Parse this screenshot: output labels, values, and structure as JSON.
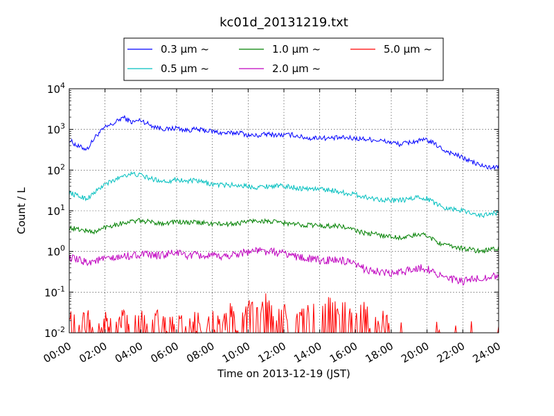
{
  "chart_data": {
    "type": "line",
    "title": "kc01d_20131219.txt",
    "xlabel": "Time on 2013-12-19 (JST)",
    "ylabel": "Count / L",
    "yscale": "log",
    "ylim": [
      0.01,
      10000
    ],
    "xlim": [
      "00:00",
      "24:00"
    ],
    "x_ticks": [
      "00:00",
      "02:00",
      "04:00",
      "06:00",
      "08:00",
      "10:00",
      "12:00",
      "14:00",
      "16:00",
      "18:00",
      "20:00",
      "22:00",
      "24:00"
    ],
    "y_ticks": [
      {
        "base": "10",
        "exp": "-2",
        "value": 0.01
      },
      {
        "base": "10",
        "exp": "-1",
        "value": 0.1
      },
      {
        "base": "10",
        "exp": "0",
        "value": 1
      },
      {
        "base": "10",
        "exp": "1",
        "value": 10
      },
      {
        "base": "10",
        "exp": "2",
        "value": 100
      },
      {
        "base": "10",
        "exp": "3",
        "value": 1000
      },
      {
        "base": "10",
        "exp": "4",
        "value": 10000
      }
    ],
    "grid": true,
    "legend_position": "top",
    "x_hours": [
      0,
      0.5,
      1,
      1.5,
      2,
      2.5,
      3,
      3.5,
      4,
      4.5,
      5,
      5.5,
      6,
      6.5,
      7,
      7.5,
      8,
      8.5,
      9,
      9.5,
      10,
      10.5,
      11,
      11.5,
      12,
      12.5,
      13,
      13.5,
      14,
      14.5,
      15,
      15.5,
      16,
      16.5,
      17,
      17.5,
      18,
      18.5,
      19,
      19.5,
      20,
      20.5,
      21,
      21.5,
      22,
      22.5,
      23,
      23.5,
      24
    ],
    "series": [
      {
        "name": "0.3 μm ~",
        "color": "#0000ff",
        "values": [
          550,
          380,
          330,
          700,
          1100,
          1400,
          2000,
          1500,
          1700,
          1300,
          1100,
          1000,
          1100,
          950,
          1000,
          950,
          900,
          820,
          800,
          850,
          720,
          700,
          760,
          740,
          720,
          740,
          650,
          600,
          640,
          600,
          620,
          620,
          600,
          580,
          560,
          520,
          480,
          430,
          480,
          520,
          550,
          420,
          300,
          250,
          200,
          160,
          130,
          115,
          120
        ]
      },
      {
        "name": "0.5 μm ~",
        "color": "#00bfbf",
        "values": [
          28,
          23,
          20,
          30,
          45,
          55,
          75,
          80,
          75,
          62,
          56,
          53,
          60,
          53,
          55,
          50,
          45,
          43,
          43,
          42,
          40,
          38,
          40,
          41,
          40,
          38,
          35,
          35,
          34,
          33,
          30,
          27,
          25,
          22,
          20,
          19,
          18,
          18,
          19,
          22,
          20,
          15,
          12,
          11,
          10,
          9,
          7.5,
          8.5,
          9
        ]
      },
      {
        "name": "1.0 μm ~",
        "color": "#008000",
        "values": [
          3.8,
          3.5,
          3.2,
          3.0,
          4.0,
          4.5,
          5.0,
          5.5,
          5.7,
          5.3,
          5.0,
          5.0,
          5.5,
          5.0,
          5.2,
          5.0,
          4.8,
          4.7,
          4.7,
          5.0,
          5.5,
          5.7,
          5.5,
          5.3,
          5.0,
          4.7,
          4.5,
          4.5,
          4.3,
          4.2,
          4.3,
          3.8,
          3.3,
          2.8,
          2.7,
          2.5,
          2.3,
          2.2,
          2.3,
          2.6,
          2.5,
          1.8,
          1.4,
          1.3,
          1.2,
          1.1,
          1.0,
          1.1,
          1.2
        ]
      },
      {
        "name": "2.0 μm ~",
        "color": "#bf00bf",
        "values": [
          0.7,
          0.6,
          0.55,
          0.6,
          0.65,
          0.65,
          0.75,
          0.8,
          0.85,
          0.8,
          0.8,
          0.85,
          0.95,
          0.8,
          0.8,
          0.78,
          0.75,
          0.75,
          0.8,
          0.9,
          1.0,
          1.05,
          1.0,
          0.95,
          0.9,
          0.8,
          0.7,
          0.65,
          0.6,
          0.6,
          0.62,
          0.55,
          0.45,
          0.38,
          0.33,
          0.3,
          0.28,
          0.3,
          0.35,
          0.4,
          0.38,
          0.3,
          0.22,
          0.2,
          0.18,
          0.2,
          0.22,
          0.24,
          0.25
        ]
      },
      {
        "name": "5.0 μm ~",
        "color": "#ff0000",
        "values": [
          0.02,
          0.01,
          0.02,
          0.01,
          0.02,
          0.01,
          0.02,
          0.01,
          0.02,
          0.01,
          0.02,
          0.01,
          0.02,
          0.01,
          0.02,
          0.01,
          0.02,
          0.01,
          0.03,
          0.01,
          0.04,
          0.02,
          0.05,
          0.02,
          0.03,
          0.01,
          0.02,
          0.04,
          0.01,
          0.06,
          0.02,
          0.04,
          0.02,
          0.03,
          0.01,
          0.02,
          0.01,
          0.01,
          0.01,
          0.01,
          0.01,
          0.01,
          0.01,
          0.01,
          0.01,
          0.01,
          0.01,
          0.01,
          0.01
        ]
      }
    ]
  }
}
